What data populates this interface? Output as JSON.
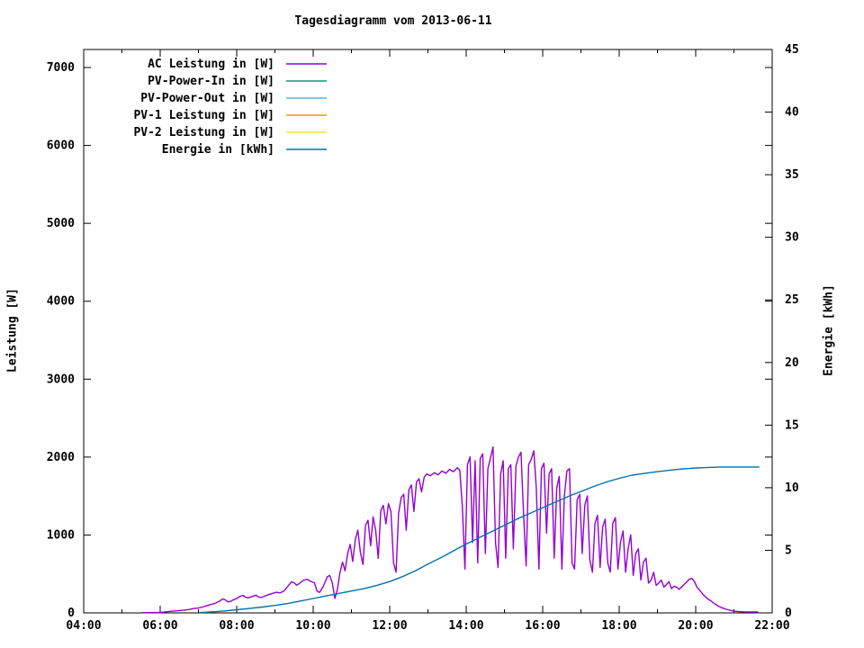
{
  "title": "Tagesdiagramm vom 2013-06-11",
  "axes": {
    "x": {
      "tick_labels": [
        "04:00",
        "06:00",
        "08:00",
        "10:00",
        "12:00",
        "14:00",
        "16:00",
        "18:00",
        "20:00",
        "22:00"
      ],
      "major_every_minutes": 120,
      "minor_every_minutes": 60,
      "range_minutes": [
        0,
        1080
      ]
    },
    "left": {
      "label": "Leistung [W]",
      "ticks": [
        0,
        1000,
        2000,
        3000,
        4000,
        5000,
        6000,
        7000
      ],
      "range": [
        0,
        7231
      ]
    },
    "right": {
      "label": "Energie [kWh]",
      "ticks": [
        0,
        5,
        10,
        15,
        20,
        25,
        30,
        35,
        40,
        45
      ],
      "range": [
        0,
        45
      ]
    }
  },
  "chart_data": {
    "type": "line",
    "title": "Tagesdiagramm vom 2013-06-11",
    "xlabel": "",
    "ylabel_left": "Leistung [W]",
    "ylabel_right": "Energie [kWh]",
    "x_axis": {
      "start": "04:00",
      "end": "22:00",
      "unit": "minutes since 04:00"
    },
    "ylim_left": [
      0,
      7231
    ],
    "ylim_right": [
      0,
      45
    ],
    "grid": false,
    "legend_position": "top-left-inside",
    "series": [
      {
        "name": "AC Leistung in [W]",
        "color": "#9400d3",
        "axis": "left",
        "points": [
          [
            92,
            3
          ],
          [
            100,
            4
          ],
          [
            110,
            5
          ],
          [
            120,
            6
          ],
          [
            126,
            10
          ],
          [
            134,
            18
          ],
          [
            142,
            24
          ],
          [
            150,
            30
          ],
          [
            158,
            36
          ],
          [
            166,
            44
          ],
          [
            172,
            55
          ],
          [
            180,
            62
          ],
          [
            186,
            75
          ],
          [
            194,
            95
          ],
          [
            200,
            110
          ],
          [
            206,
            122
          ],
          [
            212,
            145
          ],
          [
            218,
            180
          ],
          [
            222,
            168
          ],
          [
            226,
            142
          ],
          [
            230,
            146
          ],
          [
            234,
            165
          ],
          [
            240,
            185
          ],
          [
            245,
            210
          ],
          [
            250,
            225
          ],
          [
            254,
            202
          ],
          [
            258,
            192
          ],
          [
            264,
            210
          ],
          [
            270,
            228
          ],
          [
            274,
            206
          ],
          [
            278,
            196
          ],
          [
            284,
            215
          ],
          [
            290,
            235
          ],
          [
            296,
            250
          ],
          [
            302,
            264
          ],
          [
            308,
            256
          ],
          [
            314,
            280
          ],
          [
            320,
            340
          ],
          [
            326,
            400
          ],
          [
            330,
            386
          ],
          [
            334,
            356
          ],
          [
            338,
            375
          ],
          [
            344,
            415
          ],
          [
            350,
            432
          ],
          [
            356,
            406
          ],
          [
            362,
            386
          ],
          [
            366,
            282
          ],
          [
            370,
            262
          ],
          [
            376,
            342
          ],
          [
            382,
            462
          ],
          [
            386,
            482
          ],
          [
            390,
            380
          ],
          [
            394,
            186
          ],
          [
            398,
            300
          ],
          [
            402,
            520
          ],
          [
            406,
            652
          ],
          [
            410,
            540
          ],
          [
            414,
            762
          ],
          [
            418,
            880
          ],
          [
            422,
            660
          ],
          [
            426,
            940
          ],
          [
            430,
            1062
          ],
          [
            434,
            780
          ],
          [
            438,
            622
          ],
          [
            442,
            1122
          ],
          [
            446,
            1190
          ],
          [
            450,
            862
          ],
          [
            454,
            1232
          ],
          [
            458,
            1062
          ],
          [
            462,
            700
          ],
          [
            466,
            1312
          ],
          [
            470,
            1380
          ],
          [
            474,
            1142
          ],
          [
            478,
            1402
          ],
          [
            482,
            1300
          ],
          [
            486,
            640
          ],
          [
            490,
            522
          ],
          [
            494,
            1282
          ],
          [
            498,
            1480
          ],
          [
            502,
            1522
          ],
          [
            506,
            1062
          ],
          [
            510,
            1580
          ],
          [
            514,
            1642
          ],
          [
            518,
            1302
          ],
          [
            522,
            1680
          ],
          [
            526,
            1722
          ],
          [
            530,
            1552
          ],
          [
            534,
            1742
          ],
          [
            538,
            1782
          ],
          [
            544,
            1762
          ],
          [
            550,
            1800
          ],
          [
            556,
            1772
          ],
          [
            562,
            1822
          ],
          [
            568,
            1792
          ],
          [
            574,
            1842
          ],
          [
            580,
            1812
          ],
          [
            586,
            1862
          ],
          [
            590,
            1832
          ],
          [
            594,
            1352
          ],
          [
            598,
            562
          ],
          [
            602,
            1902
          ],
          [
            606,
            2002
          ],
          [
            610,
            902
          ],
          [
            614,
            1952
          ],
          [
            618,
            642
          ],
          [
            622,
            1982
          ],
          [
            626,
            2042
          ],
          [
            630,
            762
          ],
          [
            634,
            1852
          ],
          [
            638,
            1982
          ],
          [
            642,
            2130
          ],
          [
            646,
            902
          ],
          [
            650,
            582
          ],
          [
            654,
            1782
          ],
          [
            658,
            1952
          ],
          [
            662,
            702
          ],
          [
            666,
            1852
          ],
          [
            670,
            1902
          ],
          [
            674,
            822
          ],
          [
            678,
            1882
          ],
          [
            682,
            2002
          ],
          [
            686,
            2062
          ],
          [
            690,
            1252
          ],
          [
            694,
            602
          ],
          [
            698,
            1902
          ],
          [
            702,
            1972
          ],
          [
            706,
            2082
          ],
          [
            710,
            1602
          ],
          [
            714,
            562
          ],
          [
            718,
            1852
          ],
          [
            722,
            1922
          ],
          [
            726,
            1022
          ],
          [
            730,
            1782
          ],
          [
            734,
            1852
          ],
          [
            738,
            702
          ],
          [
            742,
            1602
          ],
          [
            746,
            1752
          ],
          [
            750,
            562
          ],
          [
            754,
            1502
          ],
          [
            758,
            1822
          ],
          [
            762,
            1852
          ],
          [
            766,
            642
          ],
          [
            770,
            562
          ],
          [
            774,
            1452
          ],
          [
            778,
            1522
          ],
          [
            782,
            762
          ],
          [
            786,
            1382
          ],
          [
            790,
            1502
          ],
          [
            794,
            682
          ],
          [
            798,
            522
          ],
          [
            802,
            1152
          ],
          [
            806,
            1252
          ],
          [
            810,
            582
          ],
          [
            814,
            1102
          ],
          [
            818,
            1202
          ],
          [
            822,
            642
          ],
          [
            826,
            522
          ],
          [
            830,
            1152
          ],
          [
            834,
            1222
          ],
          [
            838,
            562
          ],
          [
            842,
            902
          ],
          [
            846,
            1052
          ],
          [
            850,
            522
          ],
          [
            854,
            822
          ],
          [
            858,
            1002
          ],
          [
            862,
            482
          ],
          [
            866,
            762
          ],
          [
            870,
            822
          ],
          [
            874,
            422
          ],
          [
            878,
            652
          ],
          [
            882,
            702
          ],
          [
            886,
            382
          ],
          [
            890,
            422
          ],
          [
            894,
            522
          ],
          [
            898,
            352
          ],
          [
            902,
            382
          ],
          [
            906,
            422
          ],
          [
            910,
            332
          ],
          [
            914,
            362
          ],
          [
            918,
            402
          ],
          [
            922,
            312
          ],
          [
            926,
            342
          ],
          [
            930,
            332
          ],
          [
            934,
            302
          ],
          [
            938,
            332
          ],
          [
            944,
            382
          ],
          [
            950,
            432
          ],
          [
            954,
            442
          ],
          [
            958,
            402
          ],
          [
            962,
            332
          ],
          [
            966,
            292
          ],
          [
            972,
            232
          ],
          [
            978,
            186
          ],
          [
            984,
            152
          ],
          [
            990,
            116
          ],
          [
            996,
            86
          ],
          [
            1002,
            62
          ],
          [
            1008,
            46
          ],
          [
            1014,
            32
          ],
          [
            1020,
            22
          ],
          [
            1028,
            16
          ],
          [
            1036,
            13
          ],
          [
            1048,
            12
          ],
          [
            1058,
            12
          ]
        ]
      },
      {
        "name": "PV-Power-In in [W]",
        "color": "#009e73",
        "axis": "left",
        "points": []
      },
      {
        "name": "PV-Power-Out in [W]",
        "color": "#56b4e9",
        "axis": "left",
        "points": []
      },
      {
        "name": "PV-1 Leistung in [W]",
        "color": "#e69f00",
        "axis": "left",
        "points": []
      },
      {
        "name": "PV-2 Leistung in [W]",
        "color": "#f0e442",
        "axis": "left",
        "points": []
      },
      {
        "name": "Energie in [kWh]",
        "color": "#0072b2",
        "axis": "right",
        "points": [
          [
            182,
            0.03
          ],
          [
            200,
            0.08
          ],
          [
            220,
            0.15
          ],
          [
            240,
            0.25
          ],
          [
            260,
            0.35
          ],
          [
            280,
            0.47
          ],
          [
            300,
            0.6
          ],
          [
            320,
            0.75
          ],
          [
            340,
            0.95
          ],
          [
            360,
            1.15
          ],
          [
            380,
            1.35
          ],
          [
            400,
            1.55
          ],
          [
            420,
            1.75
          ],
          [
            440,
            1.95
          ],
          [
            460,
            2.2
          ],
          [
            480,
            2.5
          ],
          [
            500,
            2.9
          ],
          [
            520,
            3.35
          ],
          [
            540,
            3.9
          ],
          [
            560,
            4.4
          ],
          [
            580,
            4.95
          ],
          [
            600,
            5.5
          ],
          [
            620,
            6.0
          ],
          [
            640,
            6.5
          ],
          [
            660,
            7.0
          ],
          [
            680,
            7.5
          ],
          [
            700,
            7.95
          ],
          [
            720,
            8.4
          ],
          [
            740,
            8.85
          ],
          [
            760,
            9.3
          ],
          [
            780,
            9.7
          ],
          [
            800,
            10.1
          ],
          [
            820,
            10.45
          ],
          [
            840,
            10.75
          ],
          [
            860,
            11.0
          ],
          [
            880,
            11.15
          ],
          [
            900,
            11.28
          ],
          [
            920,
            11.4
          ],
          [
            940,
            11.5
          ],
          [
            960,
            11.57
          ],
          [
            980,
            11.62
          ],
          [
            1000,
            11.65
          ],
          [
            1030,
            11.65
          ],
          [
            1060,
            11.65
          ]
        ]
      }
    ]
  }
}
